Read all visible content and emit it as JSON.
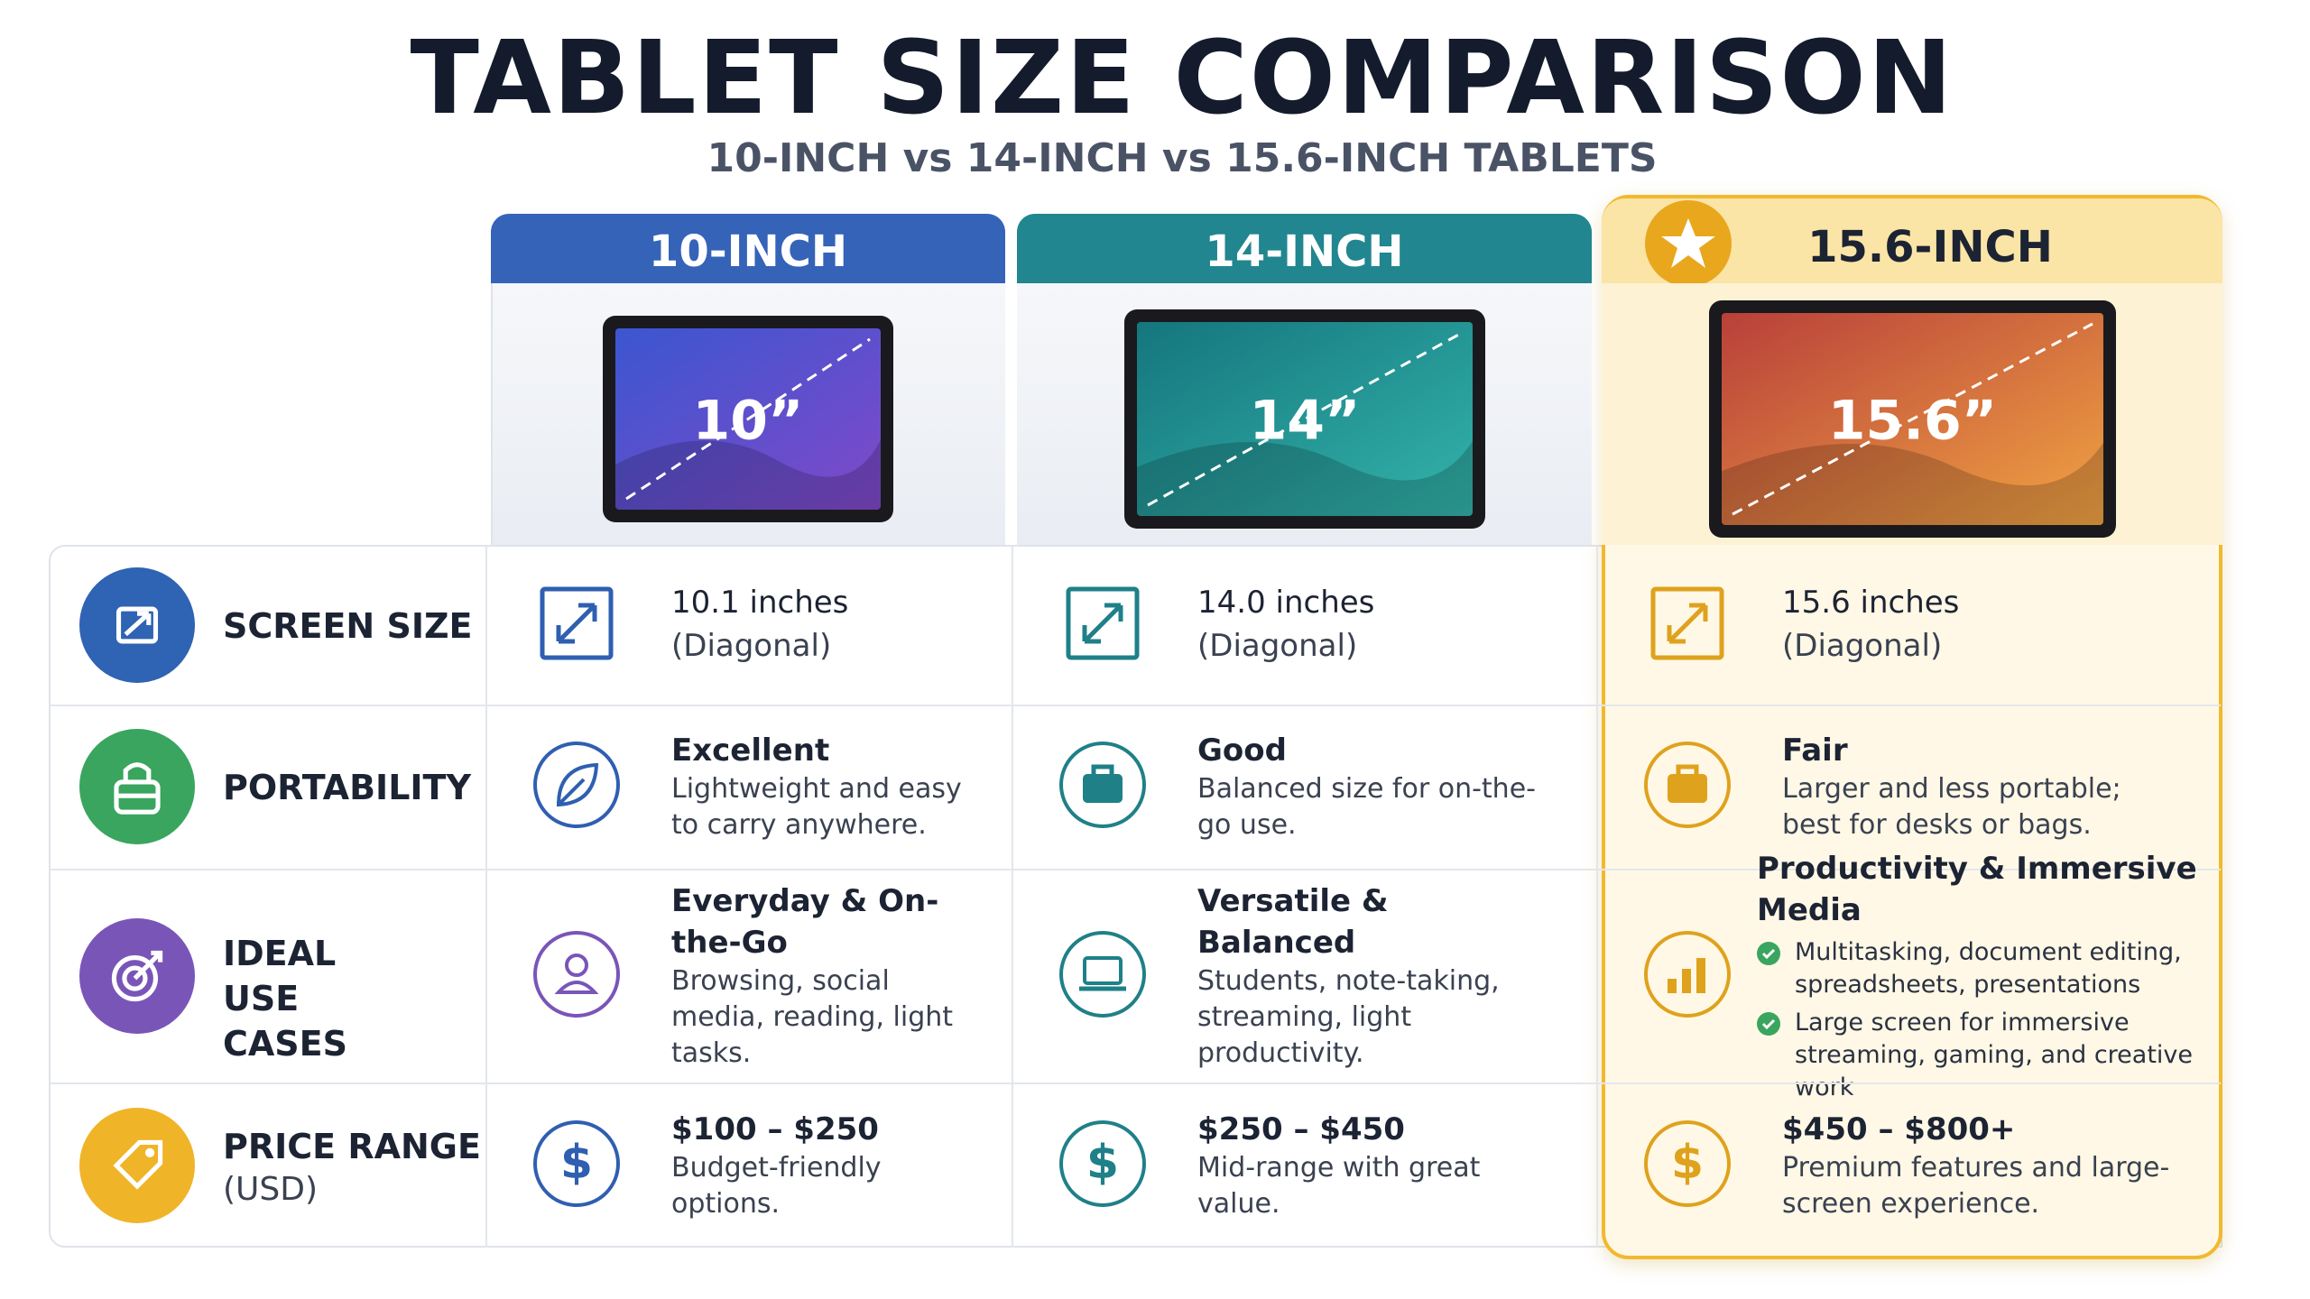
{
  "header": {
    "title": "TABLET SIZE COMPARISON",
    "subtitle": "10-INCH vs 14-INCH vs 15.6-INCH TABLETS"
  },
  "columns": [
    {
      "name": "10-INCH",
      "screen_label": "10”"
    },
    {
      "name": "14-INCH",
      "screen_label": "14”"
    },
    {
      "name": "15.6-INCH",
      "screen_label": "15.6”"
    }
  ],
  "rows": [
    {
      "label": "SCREEN SIZE",
      "cells": [
        {
          "heading": "10.1 inches",
          "text": "(Diagonal)"
        },
        {
          "heading": "14.0 inches",
          "text": "(Diagonal)"
        },
        {
          "heading": "15.6 inches",
          "text": "(Diagonal)"
        }
      ]
    },
    {
      "label": "PORTABILITY",
      "cells": [
        {
          "heading": "Excellent",
          "text": "Lightweight and easy to carry anywhere."
        },
        {
          "heading": "Good",
          "text": "Balanced size for on-the-go use."
        },
        {
          "heading": "Fair",
          "text": "Larger and less portable; best for desks or bags."
        }
      ]
    },
    {
      "label": "IDEAL USE CASES",
      "cells": [
        {
          "heading": "Everyday & On-the-Go",
          "text": "Browsing, social media, reading, light tasks."
        },
        {
          "heading": "Versatile & Balanced",
          "text": "Students, note-taking, streaming, light productivity."
        },
        {
          "heading": "Productivity & Immersive Media",
          "bullets": [
            "Multitasking, document editing, spreadsheets, presentations",
            "Large screen for immersive streaming, gaming, and creative work"
          ]
        }
      ]
    },
    {
      "label": "PRICE RANGE",
      "sublabel": "(USD)",
      "cells": [
        {
          "heading": "$100 – $250",
          "text": "Budget-friendly options."
        },
        {
          "heading": "$250 – $450",
          "text": "Mid-range with great value."
        },
        {
          "heading": "$450 – $800+",
          "text": "Premium features and large-screen experience."
        }
      ]
    }
  ]
}
